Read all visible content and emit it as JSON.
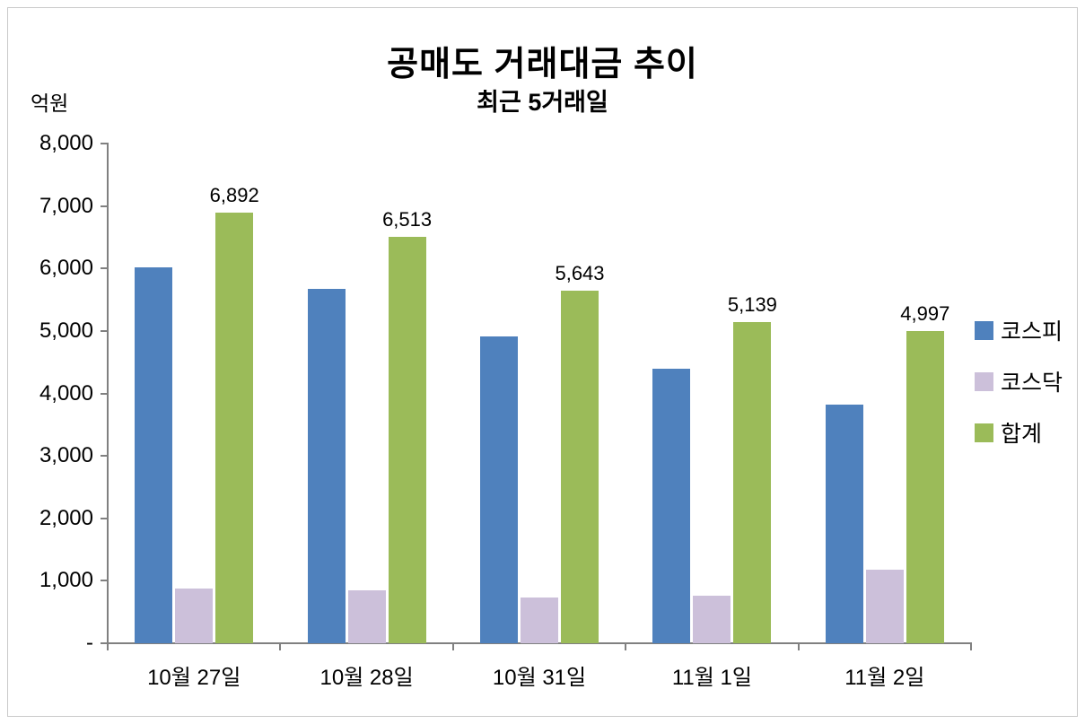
{
  "chart": {
    "title": "공매도 거래대금 추이",
    "subtitle": "최근 5거래일",
    "unit_label": "억원"
  },
  "chart_data": {
    "type": "bar",
    "title": "공매도 거래대금 추이",
    "subtitle": "최근 5거래일",
    "ylabel": "억원",
    "ylim": [
      0,
      8000
    ],
    "ytick_step": 1000,
    "ytick_labels": [
      "-",
      "1,000",
      "2,000",
      "3,000",
      "4,000",
      "5,000",
      "6,000",
      "7,000",
      "8,000"
    ],
    "grid": false,
    "legend_position": "right",
    "categories": [
      "10월 27일",
      "10월 28일",
      "10월 31일",
      "11월 1일",
      "11월 2일"
    ],
    "series": [
      {
        "key": "kospi",
        "name": "코스피",
        "color": "#4f81bd",
        "values": [
          6020,
          5670,
          4910,
          4390,
          3820
        ]
      },
      {
        "key": "kosdaq",
        "name": "코스닥",
        "color": "#ccc0da",
        "values": [
          870,
          845,
          730,
          755,
          1175
        ]
      },
      {
        "key": "total",
        "name": "합계",
        "color": "#9bbb59",
        "values": [
          6892,
          6513,
          5643,
          5139,
          4997
        ],
        "labels": [
          "6,892",
          "6,513",
          "5,643",
          "5,139",
          "4,997"
        ]
      }
    ]
  }
}
